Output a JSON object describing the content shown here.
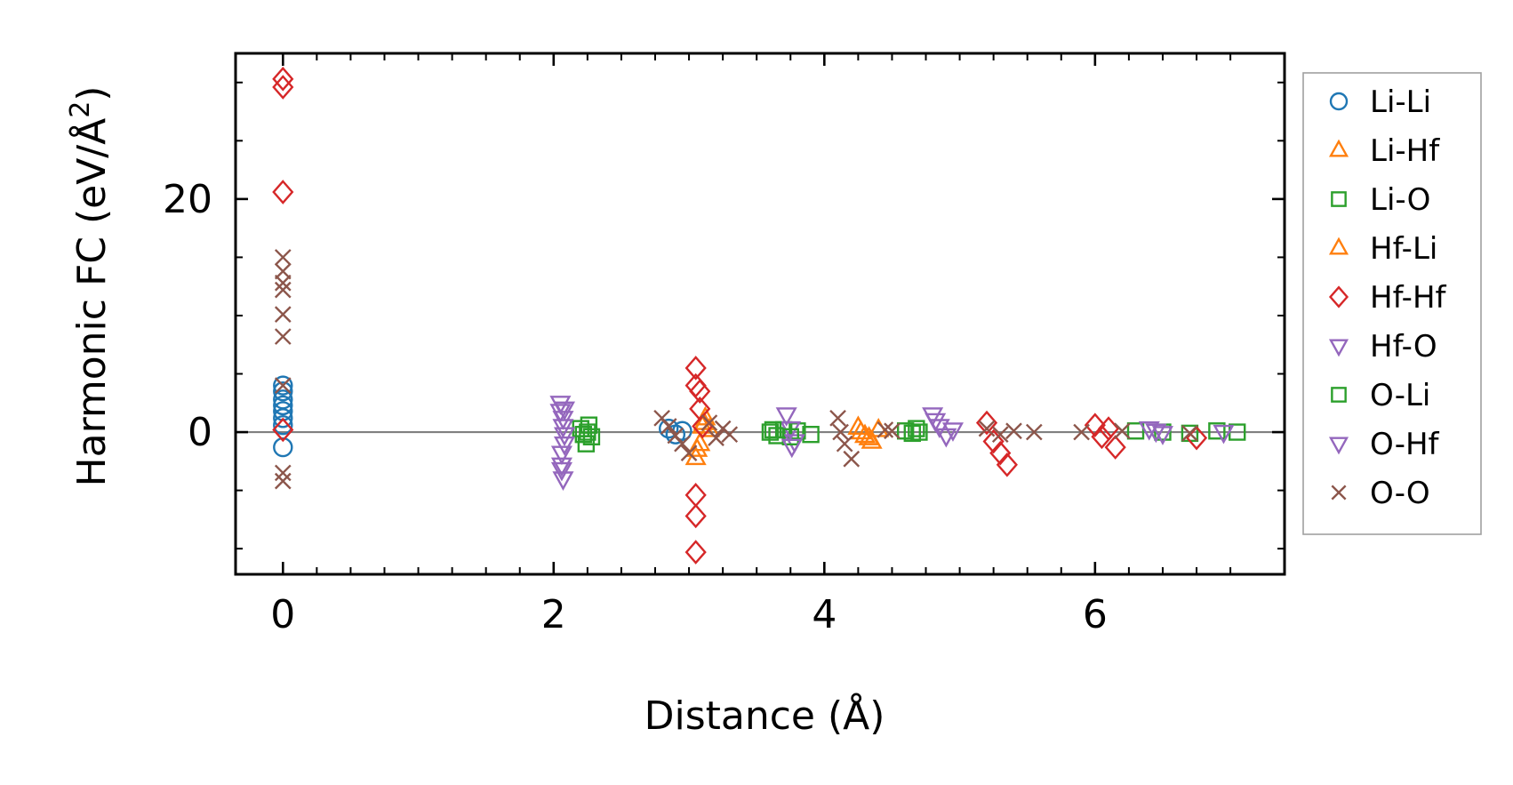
{
  "chart_data": {
    "type": "scatter",
    "xlabel": "Distance (Å)",
    "ylabel_main": "Harmonic FC (eV/Å",
    "ylabel_sup": "2",
    "ylabel_close": ")",
    "xlim": [
      -0.35,
      7.4
    ],
    "ylim": [
      -12.2,
      32.5
    ],
    "xticks": [
      0,
      2,
      4,
      6
    ],
    "xtick_labels": [
      "0",
      "2",
      "4",
      "6"
    ],
    "yticks": [
      0,
      20
    ],
    "ytick_labels": [
      "0",
      "20"
    ],
    "legend_position": "right-outside",
    "zero_line": true,
    "series": [
      {
        "name": "Li-Li",
        "marker": "circle",
        "color": "#1f77b4",
        "x": [
          0,
          0,
          0,
          0,
          0,
          0,
          0,
          0,
          2.85,
          2.9,
          2.95
        ],
        "y": [
          4.0,
          3.5,
          2.8,
          2.3,
          1.8,
          1.2,
          0.6,
          -1.3,
          0.3,
          -0.2,
          0.1
        ]
      },
      {
        "name": "Li-Hf",
        "marker": "triangle-up",
        "color": "#ff7f0e",
        "x": [
          3.05,
          3.08,
          3.1,
          3.12,
          3.15,
          4.25,
          4.3,
          4.35,
          4.4
        ],
        "y": [
          -2.2,
          -1.0,
          0.5,
          1.2,
          0.2,
          0.4,
          -0.3,
          -0.8,
          0.2
        ]
      },
      {
        "name": "Li-O",
        "marker": "square",
        "color": "#2ca02c",
        "x": [
          2.2,
          2.22,
          2.25,
          2.28,
          3.6,
          3.65,
          3.7,
          3.8,
          3.9,
          4.6,
          4.65,
          4.7,
          6.3,
          6.5,
          6.7,
          6.9,
          7.05
        ],
        "y": [
          0.3,
          -0.2,
          0.0,
          -0.4,
          0.0,
          -0.3,
          0.2,
          0.1,
          -0.2,
          0.1,
          -0.1,
          0.0,
          0.1,
          0.0,
          -0.1,
          0.1,
          0.0
        ]
      },
      {
        "name": "Hf-Li",
        "marker": "triangle-up",
        "color": "#ff7f0e",
        "x": [
          3.06,
          3.11,
          4.27,
          4.33
        ],
        "y": [
          -1.5,
          0.8,
          0.0,
          -0.5
        ]
      },
      {
        "name": "Hf-Hf",
        "marker": "diamond",
        "color": "#d62728",
        "x": [
          0,
          0,
          0,
          0,
          3.05,
          3.05,
          3.08,
          3.08,
          3.1,
          3.05,
          3.05,
          3.05,
          5.2,
          5.25,
          5.3,
          5.35,
          6.0,
          6.05,
          6.1,
          6.15,
          6.75
        ],
        "y": [
          30.3,
          29.6,
          20.6,
          0.2,
          5.5,
          4.0,
          3.5,
          2.0,
          0.5,
          -5.4,
          -7.2,
          -10.3,
          0.8,
          -0.8,
          -1.8,
          -2.8,
          0.6,
          -0.4,
          0.3,
          -1.3,
          -0.5
        ]
      },
      {
        "name": "Hf-O",
        "marker": "triangle-down",
        "color": "#9467bd",
        "x": [
          2.05,
          2.05,
          2.07,
          2.07,
          2.08,
          2.08,
          2.06,
          2.06,
          2.07,
          3.72,
          3.75,
          3.78,
          4.8,
          4.85,
          4.9,
          4.95,
          6.4,
          6.5,
          6.95
        ],
        "y": [
          2.5,
          1.8,
          1.2,
          0.5,
          -0.2,
          -1.0,
          -1.8,
          -2.8,
          -4.0,
          1.5,
          0.3,
          -0.8,
          1.5,
          0.5,
          -0.3,
          0.2,
          0.3,
          -0.1,
          0.0
        ]
      },
      {
        "name": "O-Li",
        "marker": "square",
        "color": "#2ca02c",
        "x": [
          2.24,
          2.26,
          3.62,
          3.75,
          4.68
        ],
        "y": [
          -1.0,
          0.6,
          0.2,
          -0.4,
          0.3
        ]
      },
      {
        "name": "O-Hf",
        "marker": "triangle-down",
        "color": "#9467bd",
        "x": [
          2.06,
          2.08,
          3.76,
          4.82,
          6.45
        ],
        "y": [
          -3.2,
          2.0,
          -1.2,
          1.0,
          0.1
        ]
      },
      {
        "name": "O-O",
        "marker": "x",
        "color": "#8c564b",
        "x": [
          0,
          0,
          0,
          0,
          0,
          0,
          0,
          0,
          0,
          2.8,
          2.85,
          2.9,
          2.95,
          3.0,
          3.15,
          3.2,
          3.25,
          3.3,
          4.1,
          4.12,
          4.15,
          4.2,
          4.45,
          4.5,
          5.2,
          5.3,
          5.4,
          5.55,
          5.9,
          6.2,
          6.7
        ],
        "y": [
          15.0,
          13.8,
          12.8,
          12.2,
          10.1,
          8.2,
          4.0,
          -3.5,
          -4.2,
          1.2,
          0.5,
          -0.3,
          -1.0,
          -1.8,
          0.8,
          -0.5,
          0.3,
          -0.2,
          1.2,
          0.0,
          -1.0,
          -2.3,
          0.2,
          0.1,
          0.3,
          -0.2,
          0.1,
          0.0,
          0.0,
          0.1,
          -0.1
        ]
      }
    ]
  }
}
